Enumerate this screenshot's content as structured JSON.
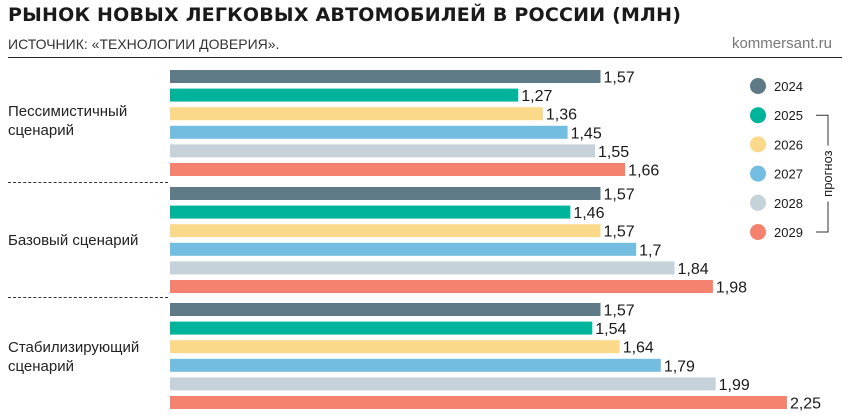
{
  "header": {
    "title": "РЫНОК НОВЫХ ЛЕГКОВЫХ АВТОМОБИЛЕЙ В РОССИИ (МЛН)",
    "subtitle": "ИСТОЧНИК: «ТЕХНОЛОГИИ ДОВЕРИЯ».",
    "site": "kommersant.ru"
  },
  "groups": [
    {
      "label_lines": [
        "Пессимистичный",
        "сценарий"
      ]
    },
    {
      "label_lines": [
        "Базовый сценарий"
      ]
    },
    {
      "label_lines": [
        "Стабилизирующий",
        "сценарий"
      ]
    }
  ],
  "chart_data": {
    "type": "bar",
    "orientation": "horizontal",
    "title": "РЫНОК НОВЫХ ЛЕГКОВЫХ АВТОМОБИЛЕЙ В РОССИИ (МЛН)",
    "categories": [
      "Пессимистичный сценарий",
      "Базовый сценарий",
      "Стабилизирующий сценарий"
    ],
    "series": [
      {
        "name": "2024",
        "color": "#5f7a87",
        "values": [
          1.57,
          1.57,
          1.57
        ],
        "labels": [
          "1,57",
          "1,57",
          "1,57"
        ]
      },
      {
        "name": "2025",
        "color": "#00b39b",
        "values": [
          1.27,
          1.46,
          1.54
        ],
        "labels": [
          "1,27",
          "1,46",
          "1,54"
        ]
      },
      {
        "name": "2026",
        "color": "#fbd98a",
        "values": [
          1.36,
          1.57,
          1.64
        ],
        "labels": [
          "1,36",
          "1,57",
          "1,64"
        ]
      },
      {
        "name": "2027",
        "color": "#72bde0",
        "values": [
          1.45,
          1.7,
          1.79
        ],
        "labels": [
          "1,45",
          "1,7",
          "1,79"
        ]
      },
      {
        "name": "2028",
        "color": "#c5d2d9",
        "values": [
          1.55,
          1.84,
          1.99
        ],
        "labels": [
          "1,55",
          "1,84",
          "1,99"
        ]
      },
      {
        "name": "2029",
        "color": "#f5826f",
        "values": [
          1.66,
          1.98,
          2.25
        ],
        "labels": [
          "1,66",
          "1,98",
          "2,25"
        ]
      }
    ],
    "xlim": [
      0,
      2.25
    ],
    "legend": {
      "position": "right",
      "bracket_label": "прогноз",
      "bracket_series": [
        "2025",
        "2026",
        "2027",
        "2028",
        "2029"
      ]
    },
    "grid": false
  }
}
